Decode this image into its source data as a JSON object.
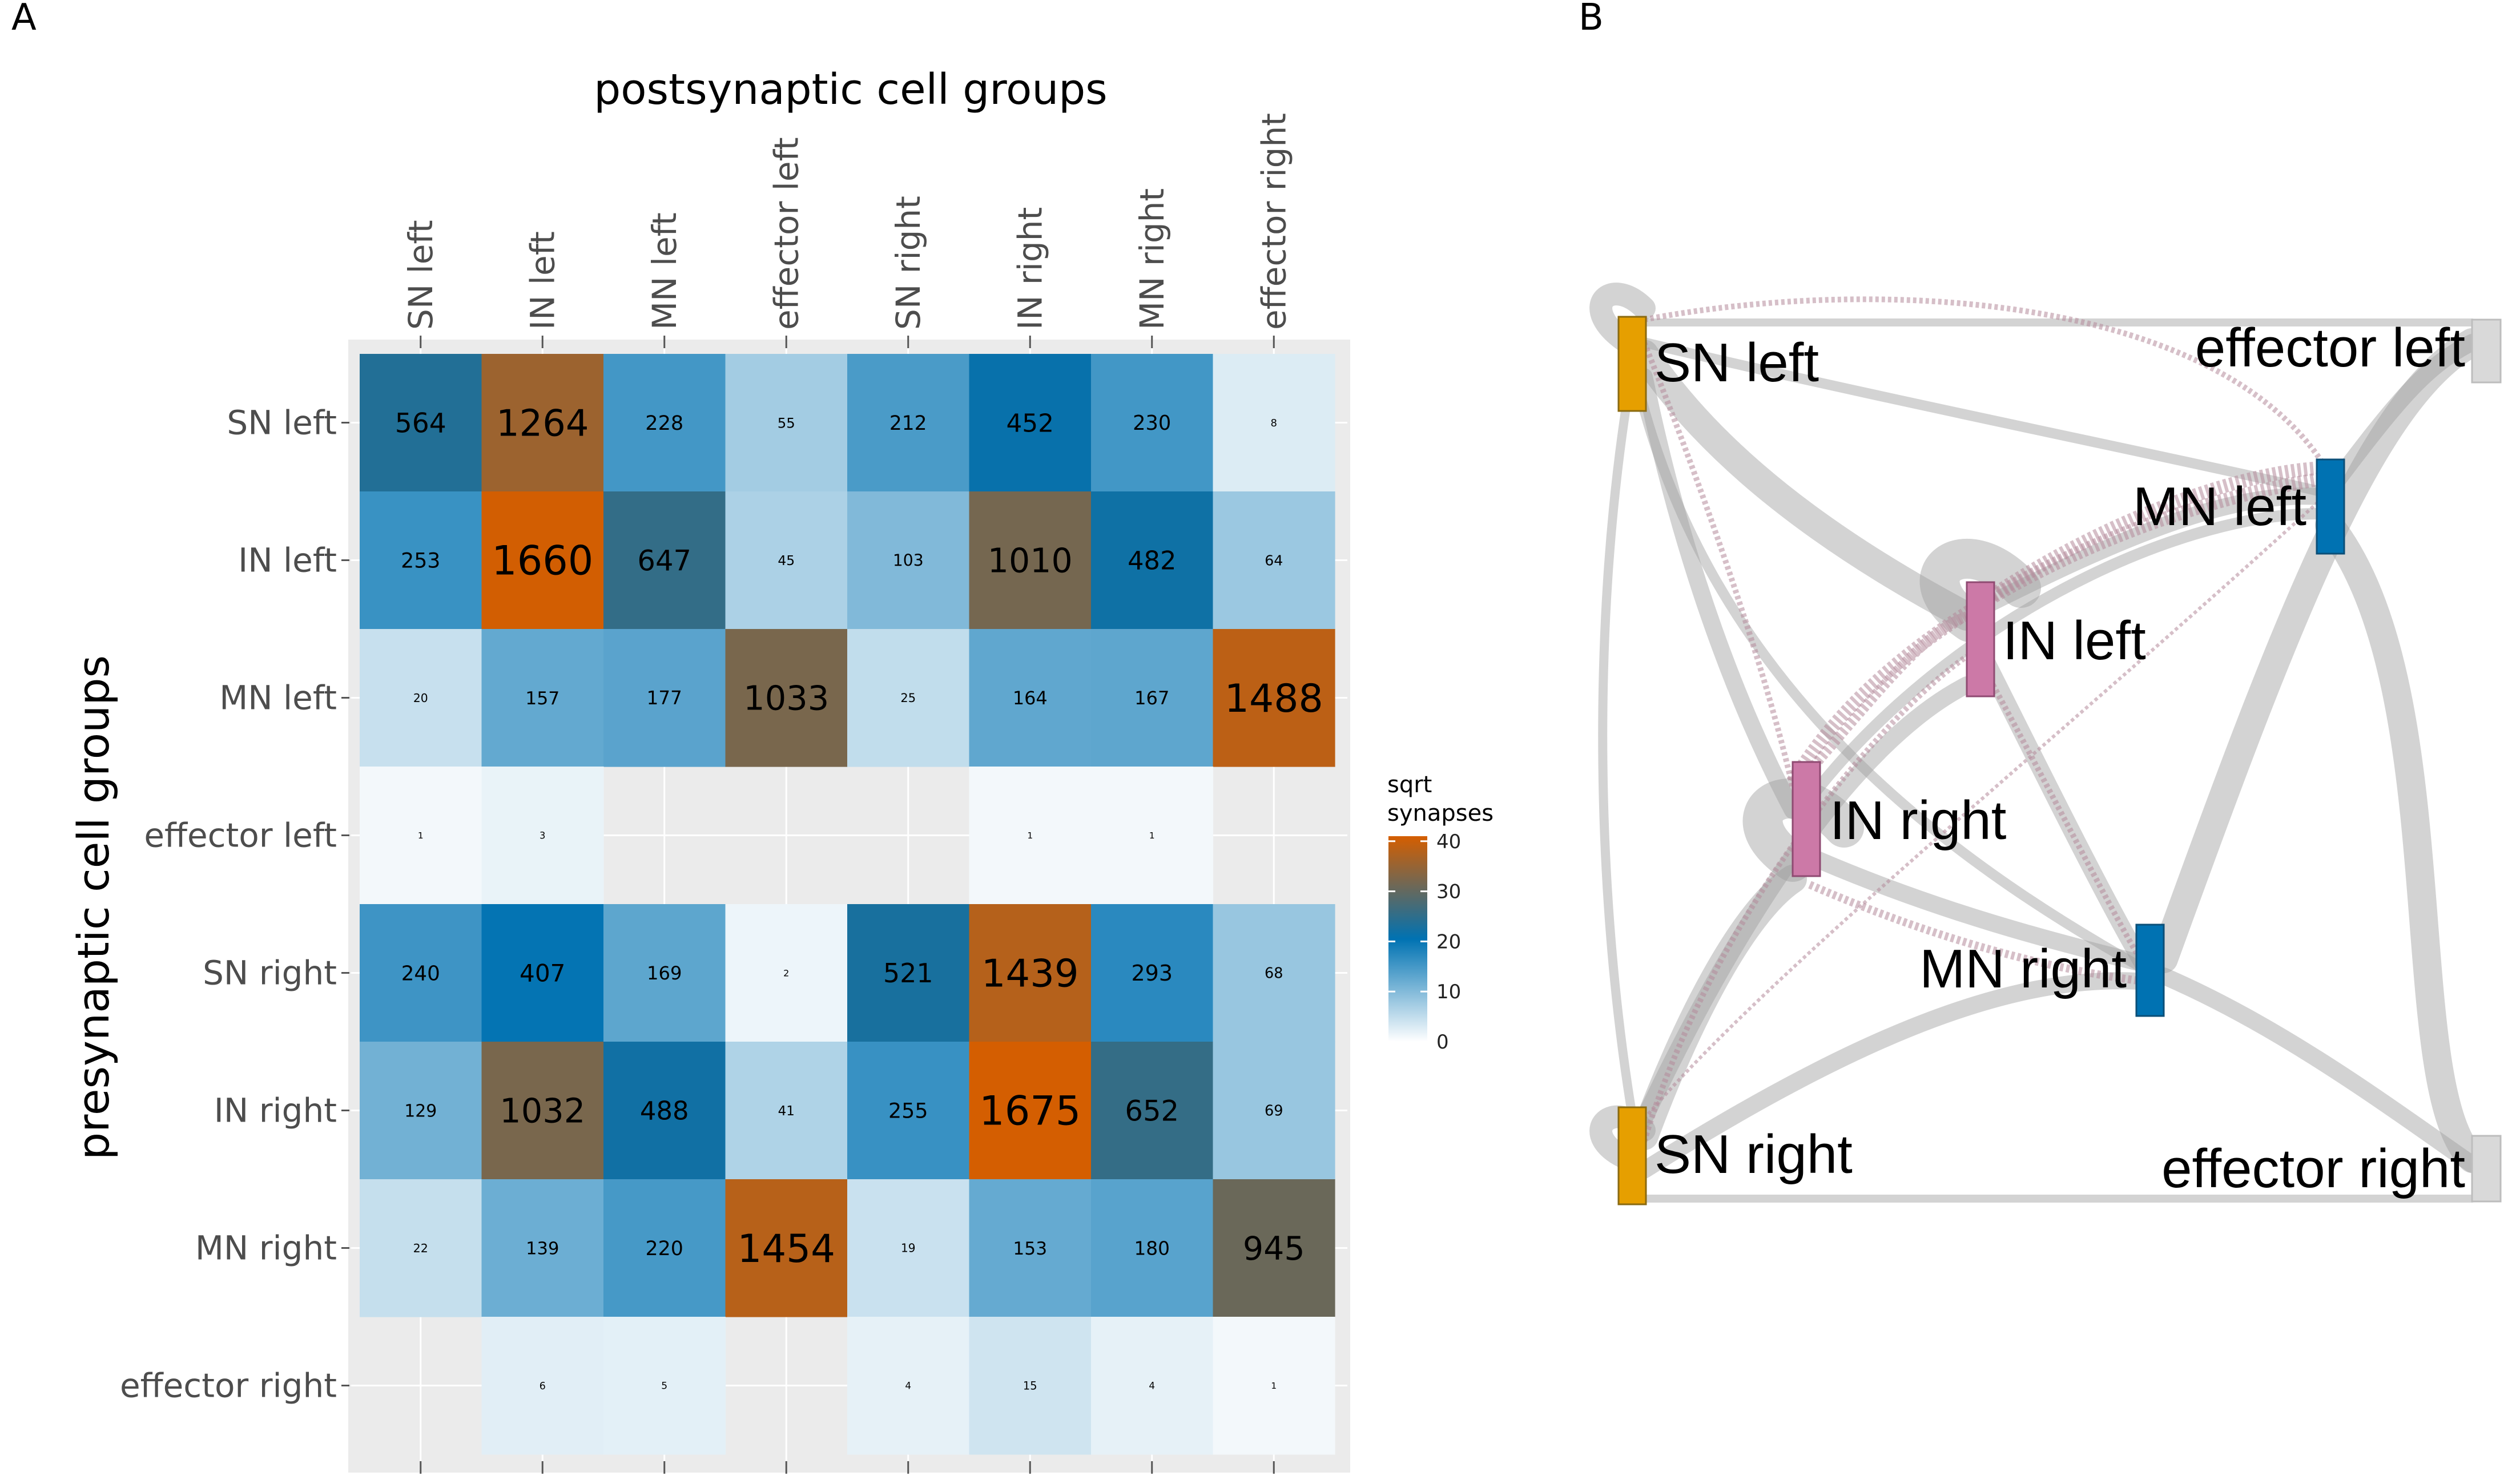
{
  "panels": {
    "a": "A",
    "b": "B"
  },
  "chart_data": [
    {
      "type": "heatmap",
      "title": "",
      "xlabel": "postsynaptic cell groups",
      "ylabel": "presynaptic cell groups",
      "x_categories": [
        "SN left",
        "IN left",
        "MN left",
        "effector left",
        "SN right",
        "IN right",
        "MN right",
        "effector right"
      ],
      "y_categories": [
        "SN left",
        "IN left",
        "MN left",
        "effector left",
        "SN right",
        "IN right",
        "MN right",
        "effector right"
      ],
      "values": [
        [
          564,
          1264,
          228,
          55,
          212,
          452,
          230,
          8
        ],
        [
          253,
          1660,
          647,
          45,
          103,
          1010,
          482,
          64
        ],
        [
          20,
          157,
          177,
          1033,
          25,
          164,
          167,
          1488
        ],
        [
          1,
          3,
          null,
          null,
          null,
          1,
          1,
          null
        ],
        [
          240,
          407,
          169,
          2,
          521,
          1439,
          293,
          68
        ],
        [
          129,
          1032,
          488,
          41,
          255,
          1675,
          652,
          69
        ],
        [
          22,
          139,
          220,
          1454,
          19,
          153,
          180,
          945
        ],
        [
          null,
          6,
          5,
          null,
          4,
          15,
          4,
          1
        ]
      ],
      "legend": {
        "title_lines": [
          "sqrt",
          "synapses"
        ],
        "ticks": [
          0,
          10,
          20,
          30,
          40
        ],
        "range": [
          0,
          41
        ],
        "colors": [
          "#ffffff",
          "#0072b2",
          "#d55e00"
        ]
      },
      "colors": {
        "panel_background": "#ebebeb"
      }
    },
    {
      "type": "network",
      "nodes": [
        {
          "id": "SN left",
          "label": "SN left",
          "color": "#e69f00"
        },
        {
          "id": "effector left",
          "label": "effector left",
          "color": "#d9d9d9"
        },
        {
          "id": "MN left",
          "label": "MN left",
          "color": "#0072b2"
        },
        {
          "id": "IN left",
          "label": "IN left",
          "color": "#cc79a7"
        },
        {
          "id": "IN right",
          "label": "IN right",
          "color": "#cc79a7"
        },
        {
          "id": "MN right",
          "label": "MN right",
          "color": "#0072b2"
        },
        {
          "id": "SN right",
          "label": "SN right",
          "color": "#e69f00"
        },
        {
          "id": "effector right",
          "label": "effector right",
          "color": "#d9d9d9"
        }
      ],
      "colors": {
        "excitatory_edge": "#a0a0a0",
        "inhibitory_edge": "#b58a9a"
      }
    }
  ]
}
